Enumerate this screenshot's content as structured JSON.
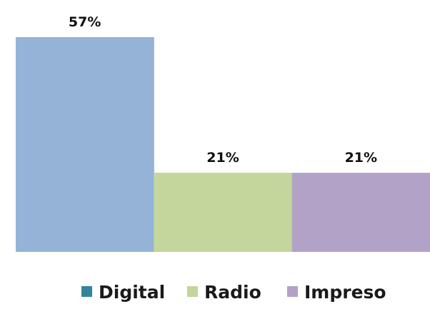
{
  "chart_data": {
    "type": "bar",
    "categories": [
      "Digital",
      "Radio",
      "Impreso"
    ],
    "values": [
      57,
      21,
      21
    ],
    "value_labels": [
      "57%",
      "21%",
      "21%"
    ],
    "ylim": [
      0,
      57
    ],
    "colors": [
      "#95B3D7",
      "#C3D69B",
      "#B3A2C7"
    ],
    "legend_swatch_colors": [
      "#31859C",
      "#C3D69B",
      "#B3A2C7"
    ],
    "legend_position": "bottom",
    "grid": false,
    "title": "",
    "xlabel": "",
    "ylabel": ""
  }
}
